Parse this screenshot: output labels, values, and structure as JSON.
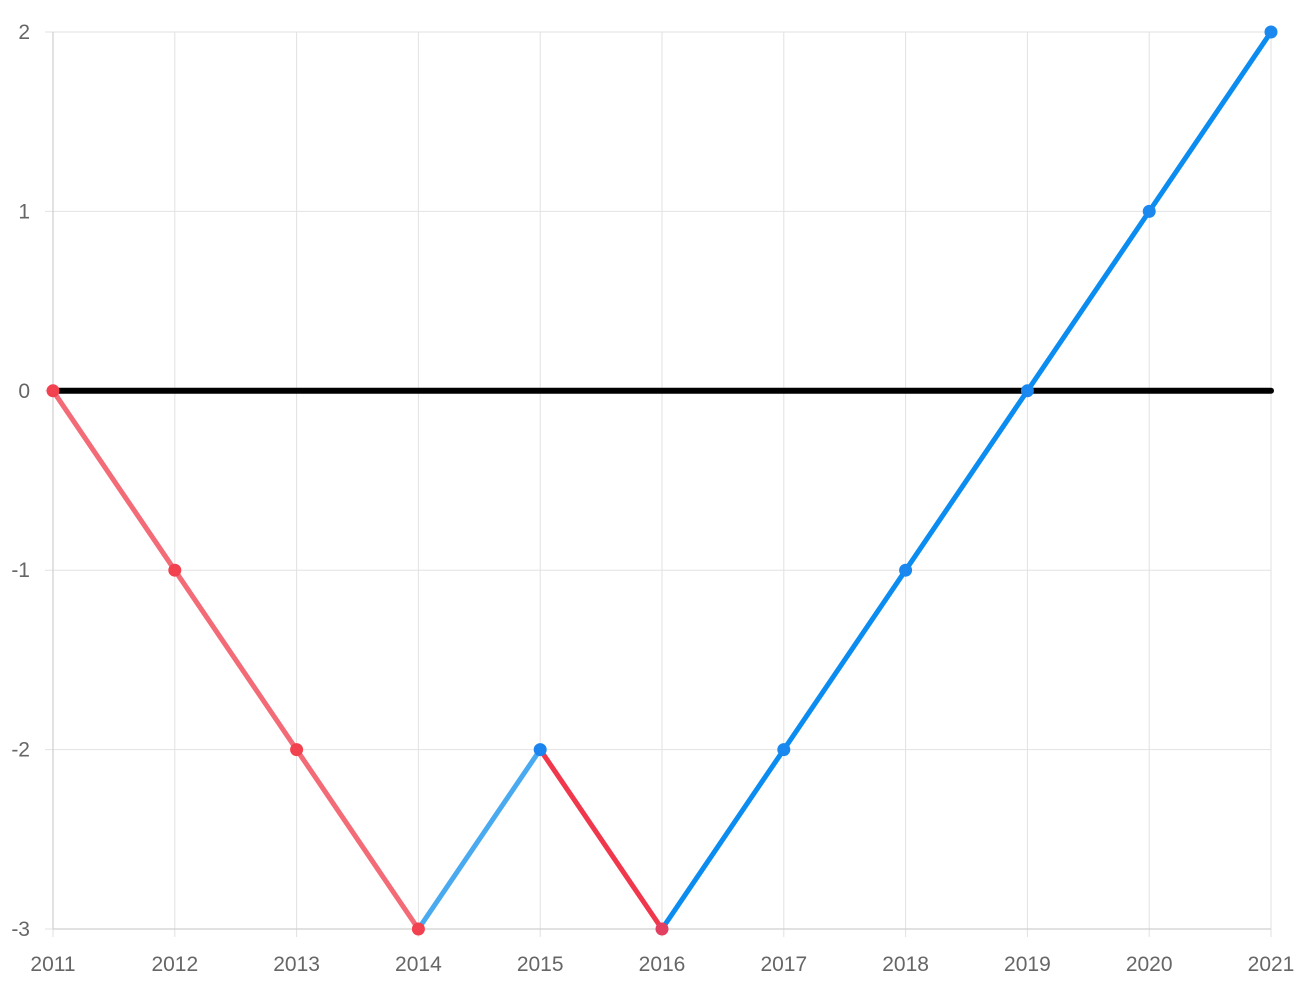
{
  "chart_data": {
    "type": "line",
    "title": "",
    "xlabel": "",
    "ylabel": "",
    "categories": [
      "2011",
      "2012",
      "2013",
      "2014",
      "2015",
      "2016",
      "2017",
      "2018",
      "2019",
      "2020",
      "2021"
    ],
    "x": [
      2011,
      2012,
      2013,
      2014,
      2015,
      2016,
      2017,
      2018,
      2019,
      2020,
      2021
    ],
    "y_ticks": [
      "2",
      "1",
      "0",
      "-1",
      "-2",
      "-3"
    ],
    "ylim": [
      -3,
      2
    ],
    "grid": true,
    "legend": "none",
    "series": [
      {
        "values": [
          0,
          -1,
          -2,
          -3,
          -2,
          -3,
          -2,
          -1,
          0,
          1,
          2
        ],
        "segment_colors": [
          "#f26b77",
          "#f26b77",
          "#f26b77",
          "#4aaaf0",
          "#f0374b",
          "#0a8cf0",
          "#0a8cf0",
          "#0a8cf0",
          "#0a8cf0",
          "#0a8cf0"
        ],
        "point_colors": [
          "#f2414f",
          "#f2414f",
          "#f2414f",
          "#f2414f",
          "#1b84ee",
          "#e24060",
          "#1a88ee",
          "#1a88ee",
          "#1a88ee",
          "#1a88ee",
          "#1a88ee"
        ]
      }
    ],
    "reference_line": {
      "y": 0,
      "color": "#000000"
    }
  }
}
